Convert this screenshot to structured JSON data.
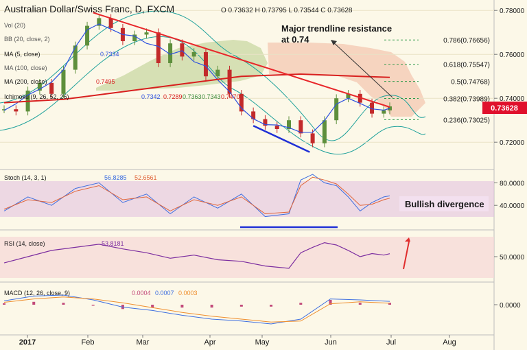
{
  "header": {
    "title": "Australian Dollar/Swiss Franc, D, FXCM",
    "ohlc": "O 0.73632 H 0.73795 L 0.73544 C 0.73628"
  },
  "indicators": {
    "vol": "Vol (20)",
    "bb": "BB (20, close, 2)",
    "ma5": "MA (5, close)",
    "ma5_value": "0.7334",
    "ma100": "MA (100, close)",
    "ma200": "MA (200, close)",
    "ma200_value": "0.7495",
    "ichimoku": "Ichimoku (9, 26, 52, 26)",
    "ichimoku_values": [
      "0.7342",
      "0.7289",
      "0.7363",
      "0.7343",
      "0.7470"
    ]
  },
  "annotations": {
    "trendline_line1": "Major trendline resistance",
    "trendline_line2": "at 0.74",
    "bullish_divergence": "Bullish divergence",
    "price_badge": "0.73628"
  },
  "fib_levels": [
    {
      "label": "0.786(0.76656)",
      "price": 0.76656
    },
    {
      "label": "0.618(0.75547)",
      "price": 0.75547
    },
    {
      "label": "0.5(0.74768)",
      "price": 0.74768
    },
    {
      "label": "0.382(0.73989)",
      "price": 0.73989
    },
    {
      "label": "0.236(0.73025)",
      "price": 0.73025
    }
  ],
  "stoch": {
    "label": "Stoch (14, 3, 1)",
    "k_value": "56.8285",
    "d_value": "52.6561",
    "ticks": [
      "80.0000",
      "40.0000"
    ]
  },
  "rsi": {
    "label": "RSI (14, close)",
    "value": "53.8181",
    "ticks": [
      "50.0000"
    ]
  },
  "macd": {
    "label": "MACD (12, 26, close, 9)",
    "values": [
      "0.0004",
      "0.0007",
      "0.0003"
    ],
    "ticks": [
      "0.0000"
    ]
  },
  "colors": {
    "price_badge_bg": "#e0102c",
    "trendline": "#e8262a",
    "support_line": "#1f2fd6",
    "ma200": "#d8201f",
    "ma5": "#2c50e0",
    "bollinger": "#1fa19b",
    "cloud_bull": "#c9d8a3",
    "cloud_bear": "#f4c8b2",
    "candle_up": "#5e8f3c",
    "candle_down": "#c22a2a",
    "stoch_band": "#e3c3e0",
    "rsi_band": "#f6d7d7",
    "stoch_k": "#3f6fe0",
    "stoch_d": "#e0653a",
    "rsi_line": "#7c2ea0",
    "macd_line": "#3f6fe0",
    "macd_signal": "#ef8e2d",
    "macd_hist": "#c24a7a",
    "arrow": "#e02d2d"
  },
  "chart_data": {
    "type": "line",
    "title": "Australian Dollar/Swiss Franc, D, FXCM",
    "x_axis_labels": [
      "2017",
      "Feb",
      "Mar",
      "Apr",
      "May",
      "Jun",
      "Jul",
      "Aug"
    ],
    "y_axis_ticks": [
      0.78,
      0.76,
      0.74,
      0.72
    ],
    "y_axis_tick_labels": [
      "0.78000",
      "0.76000",
      "0.74000",
      "0.72000"
    ],
    "ylim": [
      0.7085,
      0.7835
    ],
    "last_close": 0.73628,
    "ohlc": {
      "open": 0.73632,
      "high": 0.73795,
      "low": 0.73544,
      "close": 0.73628
    },
    "series": [
      {
        "name": "Australian Dollar/Swiss Franc",
        "x": [
          0,
          4,
          8,
          12,
          16,
          20,
          24,
          28,
          32,
          36,
          40,
          44,
          48,
          52,
          56,
          60,
          64,
          68,
          72,
          76,
          80,
          84,
          88,
          92,
          96,
          100,
          104,
          108,
          112,
          116,
          120,
          124,
          128,
          130
        ],
        "values": [
          0.735,
          0.734,
          0.7435,
          0.747,
          0.742,
          0.753,
          0.764,
          0.773,
          0.7765,
          0.772,
          0.766,
          0.769,
          0.77,
          0.756,
          0.765,
          0.759,
          0.761,
          0.75,
          0.753,
          0.742,
          0.734,
          0.7305,
          0.7275,
          0.726,
          0.73,
          0.724,
          0.7195,
          0.73,
          0.74,
          0.742,
          0.738,
          0.733,
          0.7345,
          0.7363
        ]
      },
      {
        "name": "MA (200, close)",
        "x": [
          0,
          20,
          40,
          60,
          80,
          100,
          120,
          130
        ],
        "values": [
          0.738,
          0.7395,
          0.743,
          0.7465,
          0.75,
          0.751,
          0.75,
          0.7495
        ]
      }
    ],
    "trendline_resistance": {
      "x": [
        30,
        130
      ],
      "values": [
        0.779,
        0.736
      ]
    },
    "support_line": {
      "x": [
        84,
        103
      ],
      "values": [
        0.7275,
        0.7155
      ]
    },
    "fib_levels": [
      0.76656,
      0.75547,
      0.74768,
      0.73989,
      0.73025
    ],
    "subcharts": {
      "stoch": {
        "ticks": [
          80,
          40
        ],
        "ylim": [
          0,
          100
        ],
        "k": {
          "x": [
            0,
            8,
            16,
            24,
            32,
            40,
            48,
            56,
            64,
            72,
            80,
            88,
            96,
            100,
            104,
            108,
            112,
            116,
            120,
            124,
            128,
            130
          ],
          "values": [
            30,
            55,
            40,
            70,
            80,
            45,
            60,
            25,
            55,
            35,
            60,
            20,
            25,
            85,
            95,
            80,
            75,
            55,
            30,
            45,
            55,
            56.83
          ]
        },
        "d": {
          "x": [
            0,
            8,
            16,
            24,
            32,
            40,
            48,
            56,
            64,
            72,
            80,
            88,
            96,
            100,
            104,
            108,
            112,
            116,
            120,
            124,
            128,
            130
          ],
          "values": [
            33,
            50,
            45,
            65,
            75,
            50,
            55,
            30,
            50,
            40,
            55,
            25,
            28,
            75,
            90,
            85,
            78,
            60,
            40,
            42,
            50,
            52.66
          ]
        }
      },
      "rsi": {
        "ticks": [
          50
        ],
        "ylim": [
          20,
          80
        ],
        "values": {
          "x": [
            0,
            8,
            16,
            24,
            32,
            40,
            48,
            56,
            64,
            72,
            80,
            88,
            96,
            100,
            104,
            108,
            112,
            116,
            120,
            124,
            128,
            130
          ],
          "values": [
            42,
            50,
            58,
            62,
            66,
            60,
            55,
            48,
            52,
            46,
            44,
            38,
            35,
            55,
            62,
            68,
            65,
            58,
            50,
            54,
            52,
            53.82
          ]
        }
      },
      "macd": {
        "ticks": [
          0
        ],
        "ylim": [
          -0.006,
          0.004
        ],
        "macd": {
          "x": [
            0,
            10,
            20,
            30,
            40,
            50,
            60,
            70,
            80,
            90,
            100,
            110,
            120,
            130
          ],
          "values": [
            0.0008,
            0.0018,
            0.002,
            0.001,
            -0.0005,
            -0.0012,
            -0.0022,
            -0.003,
            -0.0034,
            -0.004,
            -0.003,
            0.0012,
            0.001,
            0.0007
          ]
        },
        "signal": {
          "x": [
            0,
            10,
            20,
            30,
            40,
            50,
            60,
            70,
            80,
            90,
            100,
            110,
            120,
            130
          ],
          "values": [
            0.0005,
            0.0012,
            0.0016,
            0.0012,
            0.0004,
            -0.0006,
            -0.0016,
            -0.0024,
            -0.003,
            -0.0036,
            -0.0034,
            0.0002,
            0.0006,
            0.0003
          ]
        }
      }
    }
  }
}
